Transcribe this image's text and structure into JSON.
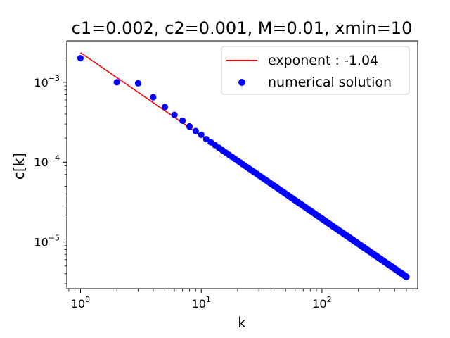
{
  "chart_data": {
    "type": "scatter",
    "title": "c1=0.002, c2=0.001, M=0.01, xmin=10",
    "xlabel": "k",
    "ylabel": "c[k]",
    "xscale": "log",
    "yscale": "log",
    "xlim": [
      0.77,
      620
    ],
    "ylim": [
      2.6e-06,
      0.0033
    ],
    "x_ticks": [
      {
        "base": "10",
        "exp": "0",
        "value": 1
      },
      {
        "base": "10",
        "exp": "1",
        "value": 10
      },
      {
        "base": "10",
        "exp": "2",
        "value": 100
      }
    ],
    "y_ticks": [
      {
        "base": "10",
        "exp": "−5",
        "value": 1e-05
      },
      {
        "base": "10",
        "exp": "−4",
        "value": 0.0001
      },
      {
        "base": "10",
        "exp": "−3",
        "value": 0.001
      }
    ],
    "grid": false,
    "legend_position": "top-right",
    "series": [
      {
        "name": "exponent : -1.04",
        "kind": "line",
        "color": "#ff0000",
        "x_start": 1,
        "x_end": 500,
        "amplitude": 0.00235,
        "exponent": -1.04
      },
      {
        "name": "numerical solution",
        "kind": "scatter",
        "color": "#0000ff",
        "x_start": 1,
        "x_end": 500,
        "points": [
          {
            "x": 1,
            "y": 0.002
          },
          {
            "x": 2,
            "y": 0.001
          },
          {
            "x": 3,
            "y": 0.00097
          },
          {
            "x": 4,
            "y": 0.00065
          },
          {
            "x": 5,
            "y": 0.00049
          },
          {
            "x": 6,
            "y": 0.00039
          },
          {
            "x": 7,
            "y": 0.00033
          },
          {
            "x": 8,
            "y": 0.00028
          },
          {
            "x": 9,
            "y": 0.000245
          },
          {
            "x": 10,
            "y": 0.00022
          }
        ],
        "tail_amplitude": 0.00235,
        "tail_exponent": -1.04
      }
    ]
  }
}
